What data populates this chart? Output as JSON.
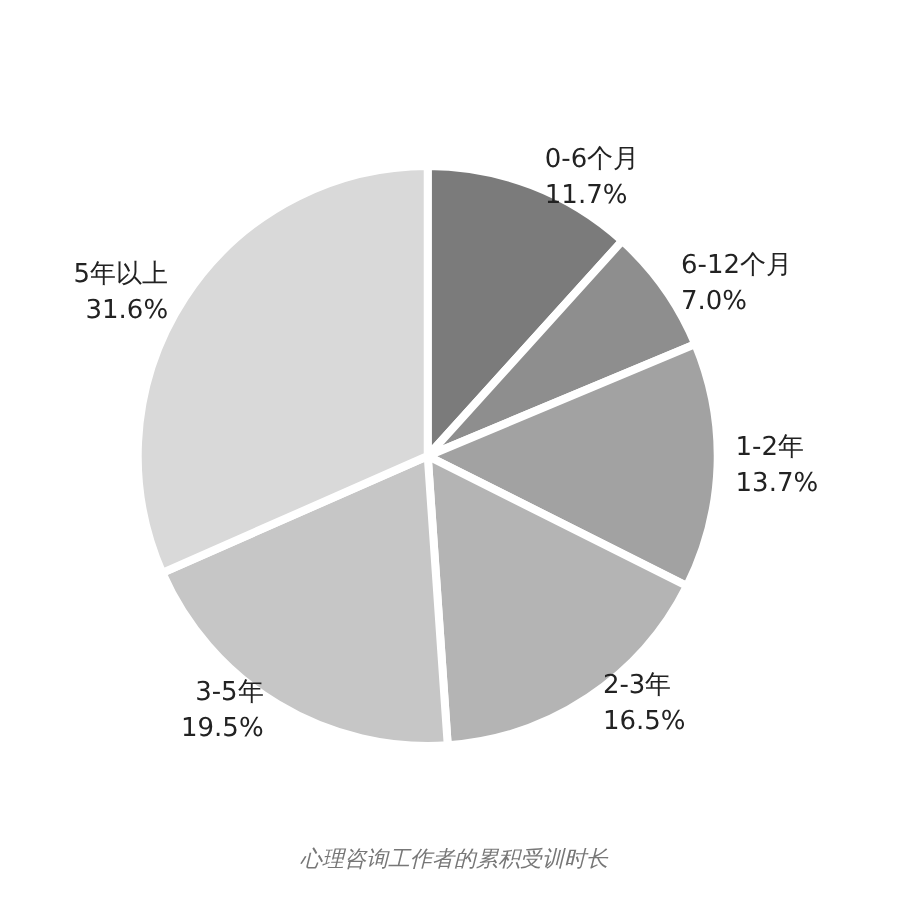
{
  "chart_data": {
    "type": "pie",
    "categories": [
      "0-6个月",
      "6-12个月",
      "1-2年",
      "2-3年",
      "3-5年",
      "5年以上"
    ],
    "values": [
      11.7,
      7.0,
      13.7,
      16.5,
      19.5,
      31.6
    ],
    "value_labels": [
      "11.7%",
      "7.0%",
      "13.7%",
      "16.5%",
      "19.5%",
      "31.6%"
    ],
    "colors": [
      "#7b7b7b",
      "#8e8e8e",
      "#a2a2a2",
      "#b4b4b4",
      "#c6c6c6",
      "#d9d9d9"
    ],
    "annotations": [
      "心理咨询工作者的累积受训时长"
    ],
    "legend": false
  }
}
